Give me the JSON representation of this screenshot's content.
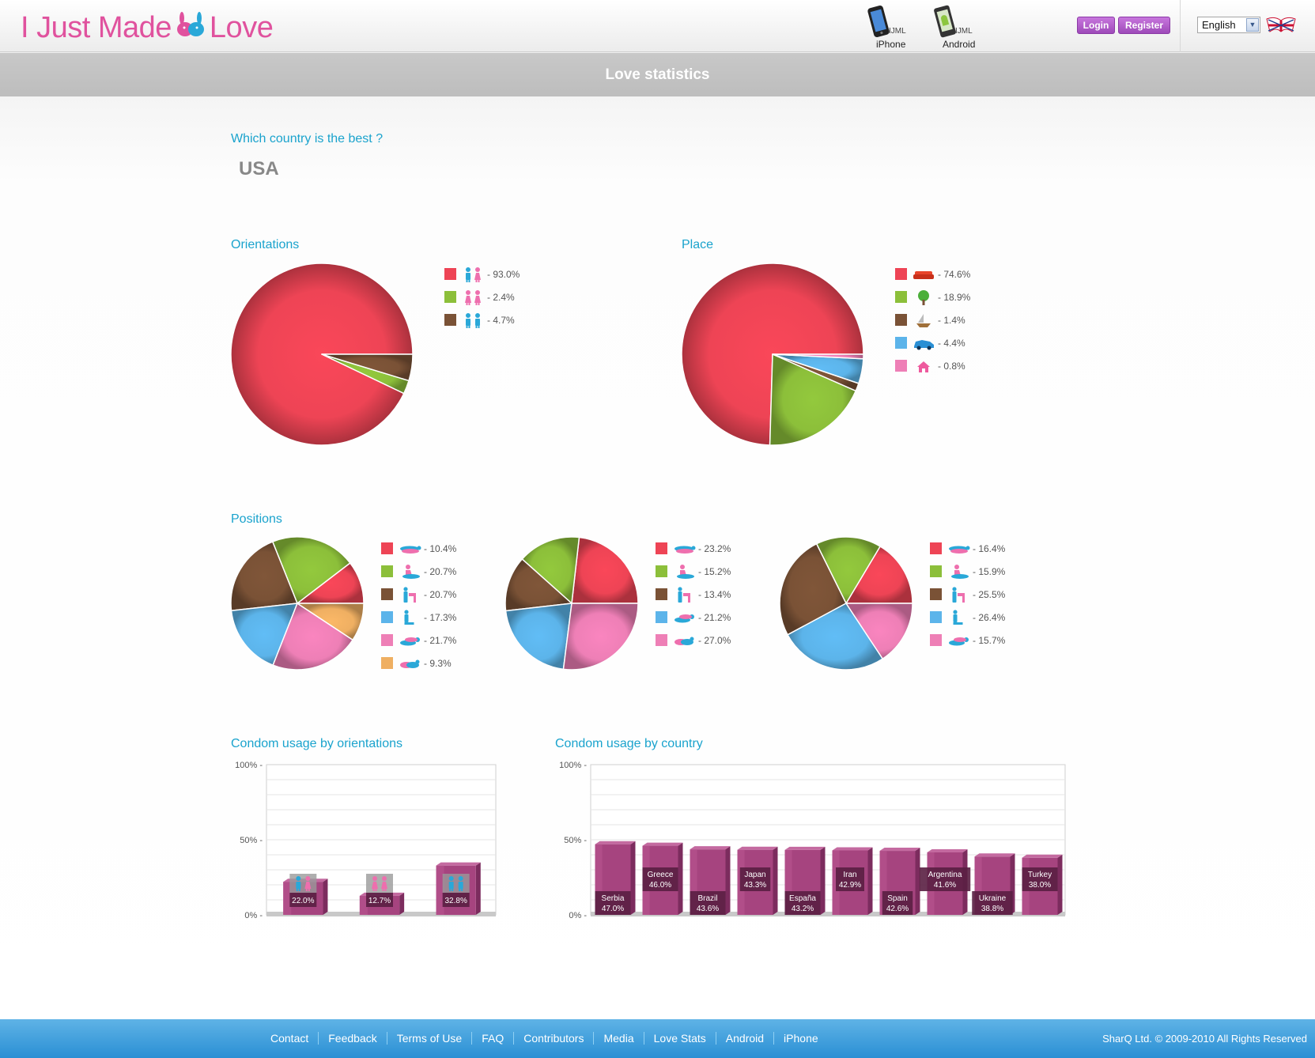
{
  "header": {
    "logo_text_1": "I Just Made",
    "logo_text_2": "Love",
    "apps": [
      {
        "small": "IJML",
        "name": "iPhone",
        "icon": "iphone-icon"
      },
      {
        "small": "IJML",
        "name": "Android",
        "icon": "android-phone-icon"
      }
    ],
    "login_label": "Login",
    "register_label": "Register",
    "language": "English",
    "flag_icon": "uk-flag-icon"
  },
  "page_title": "Love statistics",
  "best_country": {
    "heading": "Which country is the best ?",
    "value": "USA"
  },
  "colors": {
    "red": "#ee4455",
    "green": "#8cbf3a",
    "brown": "#7a5236",
    "blue": "#5cb4ea",
    "pink": "#ee7fb6",
    "orange": "#efaf62",
    "accent": "#1aa3cd",
    "bar": "#a6447f"
  },
  "orientations": {
    "heading": "Orientations",
    "chart_data": {
      "type": "pie",
      "slices": [
        {
          "value": 93.0,
          "label": "- 93.0%",
          "color": "#ee4455",
          "icon": "man-woman-icon"
        },
        {
          "value": 2.4,
          "label": "- 2.4%",
          "color": "#8cbf3a",
          "icon": "woman-woman-icon"
        },
        {
          "value": 4.7,
          "label": "- 4.7%",
          "color": "#7a5236",
          "icon": "man-man-icon"
        }
      ]
    }
  },
  "place": {
    "heading": "Place",
    "chart_data": {
      "type": "pie",
      "slices": [
        {
          "value": 74.6,
          "label": "- 74.6%",
          "color": "#ee4455",
          "icon": "sofa-icon"
        },
        {
          "value": 18.9,
          "label": "- 18.9%",
          "color": "#8cbf3a",
          "icon": "tree-icon"
        },
        {
          "value": 1.4,
          "label": "- 1.4%",
          "color": "#7a5236",
          "icon": "boat-icon"
        },
        {
          "value": 4.4,
          "label": "- 4.4%",
          "color": "#5cb4ea",
          "icon": "car-icon"
        },
        {
          "value": 0.8,
          "label": "- 0.8%",
          "color": "#ee7fb6",
          "icon": "house-icon"
        }
      ]
    }
  },
  "positions": {
    "heading": "Positions",
    "charts": [
      {
        "type": "pie",
        "slices": [
          {
            "value": 10.4,
            "label": "- 10.4%",
            "color": "#ee4455",
            "icon": "position-lying-icon"
          },
          {
            "value": 20.7,
            "label": "- 20.7%",
            "color": "#8cbf3a",
            "icon": "position-sitting-icon"
          },
          {
            "value": 20.7,
            "label": "- 20.7%",
            "color": "#7a5236",
            "icon": "position-standing-icon"
          },
          {
            "value": 17.3,
            "label": "- 17.3%",
            "color": "#5cb4ea",
            "icon": "position-kneeling-icon"
          },
          {
            "value": 21.7,
            "label": "- 21.7%",
            "color": "#ee7fb6",
            "icon": "position-behind-icon"
          },
          {
            "value": 9.3,
            "label": "- 9.3%",
            "color": "#efaf62",
            "icon": "position-side-icon"
          }
        ]
      },
      {
        "type": "pie",
        "slices": [
          {
            "value": 23.2,
            "label": "- 23.2%",
            "color": "#ee4455",
            "icon": "position-lying-icon"
          },
          {
            "value": 15.2,
            "label": "- 15.2%",
            "color": "#8cbf3a",
            "icon": "position-sitting-icon"
          },
          {
            "value": 13.4,
            "label": "- 13.4%",
            "color": "#7a5236",
            "icon": "position-standing-icon"
          },
          {
            "value": 21.2,
            "label": "- 21.2%",
            "color": "#5cb4ea",
            "icon": "position-behind-icon"
          },
          {
            "value": 27.0,
            "label": "- 27.0%",
            "color": "#ee7fb6",
            "icon": "position-side-icon"
          }
        ]
      },
      {
        "type": "pie",
        "slices": [
          {
            "value": 16.4,
            "label": "- 16.4%",
            "color": "#ee4455",
            "icon": "position-lying-icon"
          },
          {
            "value": 15.9,
            "label": "- 15.9%",
            "color": "#8cbf3a",
            "icon": "position-sitting-icon"
          },
          {
            "value": 25.5,
            "label": "- 25.5%",
            "color": "#7a5236",
            "icon": "position-standing-icon"
          },
          {
            "value": 26.4,
            "label": "- 26.4%",
            "color": "#5cb4ea",
            "icon": "position-kneeling-icon"
          },
          {
            "value": 15.7,
            "label": "- 15.7%",
            "color": "#ee7fb6",
            "icon": "position-behind-icon"
          }
        ]
      }
    ]
  },
  "condom_orientations": {
    "heading": "Condom usage by orientations",
    "chart_data": {
      "type": "bar",
      "ylim": [
        0,
        100
      ],
      "yticks": [
        "100% -",
        "50% -",
        "0% -"
      ],
      "bars": [
        {
          "value": 22.0,
          "label": "22.0%",
          "icon": "man-woman-icon"
        },
        {
          "value": 12.7,
          "label": "12.7%",
          "icon": "woman-woman-icon"
        },
        {
          "value": 32.8,
          "label": "32.8%",
          "icon": "man-man-icon"
        }
      ]
    }
  },
  "condom_country": {
    "heading": "Condom usage by country",
    "chart_data": {
      "type": "bar",
      "ylim": [
        0,
        100
      ],
      "yticks": [
        "100% -",
        "50% -",
        "0% -"
      ],
      "bars": [
        {
          "category": "Serbia",
          "value": 47.0,
          "label": "47.0%"
        },
        {
          "category": "Greece",
          "value": 46.0,
          "label": "46.0%"
        },
        {
          "category": "Brazil",
          "value": 43.6,
          "label": "43.6%"
        },
        {
          "category": "Japan",
          "value": 43.3,
          "label": "43.3%"
        },
        {
          "category": "España",
          "value": 43.2,
          "label": "43.2%"
        },
        {
          "category": "Iran",
          "value": 42.9,
          "label": "42.9%"
        },
        {
          "category": "Spain",
          "value": 42.6,
          "label": "42.6%"
        },
        {
          "category": "Argentina",
          "value": 41.6,
          "label": "41.6%"
        },
        {
          "category": "Ukraine",
          "value": 38.8,
          "label": "38.8%"
        },
        {
          "category": "Turkey",
          "value": 38.0,
          "label": "38.0%"
        }
      ]
    }
  },
  "footer": {
    "links": [
      "Contact",
      "Feedback",
      "Terms of Use",
      "FAQ",
      "Contributors",
      "Media",
      "Love Stats",
      "Android",
      "iPhone"
    ],
    "copyright": "SharQ Ltd. © 2009-2010 All Rights Reserved"
  }
}
